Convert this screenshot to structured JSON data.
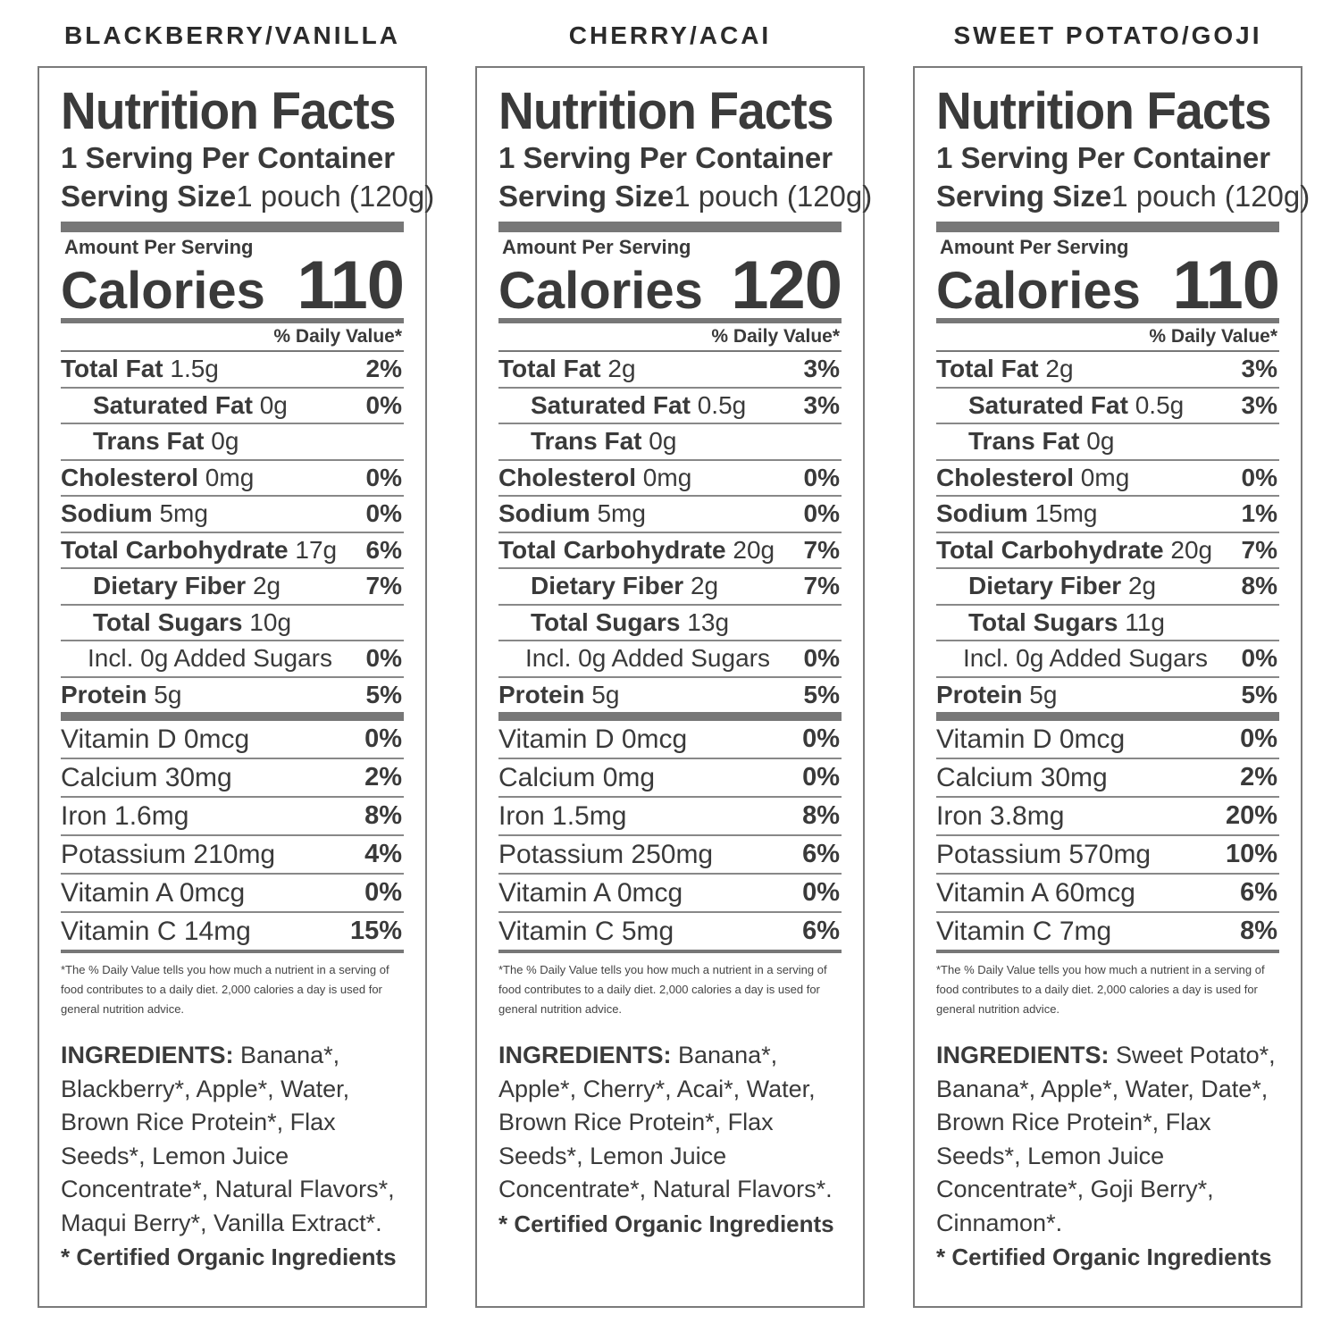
{
  "labels": [
    {
      "flavor": "BLACKBERRY/VANILLA",
      "title": "Nutrition Facts",
      "servings": "1 Serving Per Container",
      "serving_size_label": "Serving Size",
      "serving_size_value": "1 pouch (120g)",
      "amount_per": "Amount Per Serving",
      "calories_label": "Calories",
      "calories": "110",
      "dv_header": "% Daily Value*",
      "nutrients": [
        {
          "name": "Total Fat",
          "amount": " 1.5g",
          "dv": "2%",
          "indent": 0
        },
        {
          "name": "Saturated Fat",
          "amount": " 0g",
          "dv": "0%",
          "indent": 1
        },
        {
          "name": "Trans Fat",
          "amount": " 0g",
          "dv": "",
          "indent": 1
        },
        {
          "name": "Cholesterol",
          "amount": " 0mg",
          "dv": "0%",
          "indent": 0
        },
        {
          "name": "Sodium",
          "amount": " 5mg",
          "dv": "0%",
          "indent": 0
        },
        {
          "name": "Total Carbohydrate",
          "amount": " 17g",
          "dv": "6%",
          "indent": 0
        },
        {
          "name": "Dietary Fiber",
          "amount": " 2g",
          "dv": "7%",
          "indent": 1
        },
        {
          "name": "Total Sugars",
          "amount": " 10g",
          "dv": "",
          "indent": 1
        },
        {
          "name": "",
          "amount": "Incl. 0g Added Sugars",
          "dv": "0%",
          "indent": 2
        },
        {
          "name": "Protein",
          "amount": " 5g",
          "dv": "5%",
          "indent": 0
        }
      ],
      "vitamins": [
        {
          "text": "Vitamin D  0mcg",
          "dv": "0%"
        },
        {
          "text": "Calcium 30mg",
          "dv": "2%"
        },
        {
          "text": "Iron 1.6mg",
          "dv": "8%"
        },
        {
          "text": "Potassium 210mg",
          "dv": "4%"
        },
        {
          "text": "Vitamin A 0mcg",
          "dv": "0%"
        },
        {
          "text": "Vitamin C 14mg",
          "dv": "15%"
        }
      ],
      "footnote": "*The % Daily Value tells you how much a nutrient in a serving of food contributes to a daily diet. 2,000 calories a day is used for general nutrition advice.",
      "ingredients_head": "INGREDIENTS:",
      "ingredients": " Banana*, Blackberry*, Apple*, Water, Brown Rice Protein*, Flax Seeds*, Lemon Juice Concentrate*, Natural Flavors*, Maqui Berry*, Vanilla Extract*.",
      "organic": "* Certified Organic Ingredients"
    },
    {
      "flavor": "CHERRY/ACAI",
      "title": "Nutrition Facts",
      "servings": "1 Serving Per Container",
      "serving_size_label": "Serving Size",
      "serving_size_value": "1 pouch (120g)",
      "amount_per": "Amount Per Serving",
      "calories_label": "Calories",
      "calories": "120",
      "dv_header": "% Daily Value*",
      "nutrients": [
        {
          "name": "Total Fat",
          "amount": " 2g",
          "dv": "3%",
          "indent": 0
        },
        {
          "name": "Saturated Fat",
          "amount": " 0.5g",
          "dv": "3%",
          "indent": 1
        },
        {
          "name": "Trans Fat",
          "amount": " 0g",
          "dv": "",
          "indent": 1
        },
        {
          "name": "Cholesterol",
          "amount": " 0mg",
          "dv": "0%",
          "indent": 0
        },
        {
          "name": "Sodium",
          "amount": " 5mg",
          "dv": "0%",
          "indent": 0
        },
        {
          "name": "Total Carbohydrate",
          "amount": " 20g",
          "dv": "7%",
          "indent": 0
        },
        {
          "name": "Dietary Fiber",
          "amount": " 2g",
          "dv": "7%",
          "indent": 1
        },
        {
          "name": "Total Sugars",
          "amount": " 13g",
          "dv": "",
          "indent": 1
        },
        {
          "name": "",
          "amount": "Incl. 0g Added Sugars",
          "dv": "0%",
          "indent": 2
        },
        {
          "name": "Protein",
          "amount": " 5g",
          "dv": "5%",
          "indent": 0
        }
      ],
      "vitamins": [
        {
          "text": "Vitamin D  0mcg",
          "dv": "0%"
        },
        {
          "text": "Calcium 0mg",
          "dv": "0%"
        },
        {
          "text": "Iron 1.5mg",
          "dv": "8%"
        },
        {
          "text": "Potassium 250mg",
          "dv": "6%"
        },
        {
          "text": "Vitamin A 0mcg",
          "dv": "0%"
        },
        {
          "text": "Vitamin C 5mg",
          "dv": "6%"
        }
      ],
      "footnote": "*The % Daily Value tells you how much a nutrient in a serving of food contributes to a daily diet. 2,000 calories a day is used for general nutrition advice.",
      "ingredients_head": "INGREDIENTS:",
      "ingredients": " Banana*, Apple*, Cherry*, Acai*, Water, Brown Rice Protein*, Flax Seeds*, Lemon Juice Concentrate*, Natural Flavors*.",
      "organic": "* Certified Organic Ingredients"
    },
    {
      "flavor": "SWEET POTATO/GOJI",
      "title": "Nutrition Facts",
      "servings": "1 Serving Per Container",
      "serving_size_label": "Serving Size",
      "serving_size_value": "1 pouch (120g)",
      "amount_per": "Amount Per Serving",
      "calories_label": "Calories",
      "calories": "110",
      "dv_header": "% Daily Value*",
      "nutrients": [
        {
          "name": "Total Fat",
          "amount": " 2g",
          "dv": "3%",
          "indent": 0
        },
        {
          "name": "Saturated Fat",
          "amount": " 0.5g",
          "dv": "3%",
          "indent": 1
        },
        {
          "name": "Trans Fat",
          "amount": " 0g",
          "dv": "",
          "indent": 1
        },
        {
          "name": "Cholesterol",
          "amount": " 0mg",
          "dv": "0%",
          "indent": 0
        },
        {
          "name": "Sodium",
          "amount": " 15mg",
          "dv": "1%",
          "indent": 0
        },
        {
          "name": "Total Carbohydrate",
          "amount": " 20g",
          "dv": "7%",
          "indent": 0
        },
        {
          "name": "Dietary Fiber",
          "amount": " 2g",
          "dv": "8%",
          "indent": 1
        },
        {
          "name": "Total Sugars",
          "amount": " 11g",
          "dv": "",
          "indent": 1
        },
        {
          "name": "",
          "amount": "Incl. 0g Added Sugars",
          "dv": "0%",
          "indent": 2
        },
        {
          "name": "Protein",
          "amount": " 5g",
          "dv": "5%",
          "indent": 0
        }
      ],
      "vitamins": [
        {
          "text": "Vitamin D  0mcg",
          "dv": "0%"
        },
        {
          "text": "Calcium 30mg",
          "dv": "2%"
        },
        {
          "text": "Iron 3.8mg",
          "dv": "20%"
        },
        {
          "text": "Potassium 570mg",
          "dv": "10%"
        },
        {
          "text": "Vitamin A 60mcg",
          "dv": "6%"
        },
        {
          "text": "Vitamin C 7mg",
          "dv": "8%"
        }
      ],
      "footnote": "*The % Daily Value tells you how much a nutrient in a serving of food contributes to a daily diet. 2,000 calories a day is used for general nutrition advice.",
      "ingredients_head": "INGREDIENTS:",
      "ingredients": " Sweet Potato*, Banana*, Apple*, Water, Date*, Brown Rice Protein*, Flax Seeds*, Lemon Juice Concentrate*, Goji Berry*, Cinnamon*.",
      "organic": "* Certified Organic Ingredients"
    }
  ]
}
